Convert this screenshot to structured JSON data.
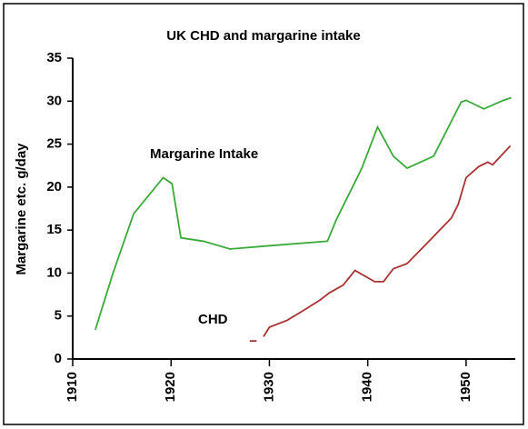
{
  "chart_data": {
    "type": "line",
    "title": "UK CHD and margarine intake",
    "ylabel": "Margarine etc. g/day",
    "annotations": [
      "Margarine Intake",
      "CHD"
    ],
    "xlim": [
      1910,
      1955
    ],
    "xticks": [
      1910,
      1920,
      1930,
      1940,
      1950
    ],
    "ylim": [
      0,
      35
    ],
    "yticks": [
      0,
      5,
      10,
      15,
      20,
      25,
      30,
      35
    ],
    "grid": false,
    "series": [
      {
        "name": "Margarine Intake",
        "color": "#3aaa3a",
        "x": [
          1912.3,
          1914.1,
          1916.2,
          1919.2,
          1920.1,
          1921,
          1923.3,
          1926,
          1930.2,
          1935.9,
          1936.8,
          1939.4,
          1941,
          1942.6,
          1944,
          1946.7,
          1949.5,
          1950,
          1951.8,
          1953.8,
          1954.6
        ],
        "values": [
          3.4,
          10,
          16.9,
          21.1,
          20.4,
          14.1,
          13.7,
          12.8,
          13.2,
          13.7,
          16.2,
          22.2,
          27,
          23.6,
          22.2,
          23.6,
          29.9,
          30.1,
          29.1,
          30.1,
          30.4
        ]
      },
      {
        "name": "CHD",
        "color": "#a83232",
        "x": [
          1928,
          1928.7,
          1929,
          1929.4,
          1930,
          1931.8,
          1933.4,
          1935.2,
          1936.1,
          1937.5,
          1938.7,
          1940.7,
          1941.6,
          1942.6,
          1944,
          1945.8,
          1948.5,
          1949.2,
          1950,
          1951.3,
          1952.2,
          1952.7,
          1954.5
        ],
        "values": [
          2.1,
          2.1,
          null,
          2.6,
          3.7,
          4.5,
          5.6,
          6.9,
          7.7,
          8.6,
          10.3,
          9,
          9,
          10.5,
          11.1,
          13.2,
          16.4,
          18,
          21.1,
          22.4,
          22.9,
          22.6,
          24.8
        ]
      }
    ]
  }
}
